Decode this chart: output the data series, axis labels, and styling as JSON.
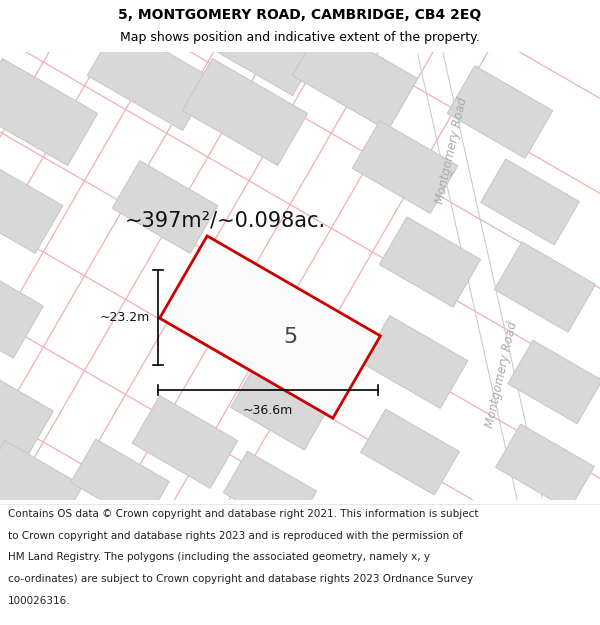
{
  "title_line1": "5, MONTGOMERY ROAD, CAMBRIDGE, CB4 2EQ",
  "title_line2": "Map shows position and indicative extent of the property.",
  "area_text": "~397m²/~0.098ac.",
  "dim_width": "~36.6m",
  "dim_height": "~23.2m",
  "plot_label": "5",
  "road_label": "Montgomery Road",
  "footer_lines": [
    "Contains OS data © Crown copyright and database right 2021. This information is subject",
    "to Crown copyright and database rights 2023 and is reproduced with the permission of",
    "HM Land Registry. The polygons (including the associated geometry, namely x, y",
    "co-ordinates) are subject to Crown copyright and database rights 2023 Ordnance Survey",
    "100026316."
  ],
  "map_bg": "#f2f2f2",
  "building_fc": "#d8d8d8",
  "building_ec": "#c8c8c8",
  "grid_color": "#f0b0b0",
  "plot_ec": "#cc0000",
  "plot_fc": "#fafafa",
  "road_color": "#bbbbbb",
  "road_label_color": "#aaaaaa",
  "title_fontsize": 10,
  "subtitle_fontsize": 9,
  "area_fontsize": 15,
  "dim_fontsize": 9,
  "plot_label_fontsize": 16,
  "footer_fontsize": 7.5
}
